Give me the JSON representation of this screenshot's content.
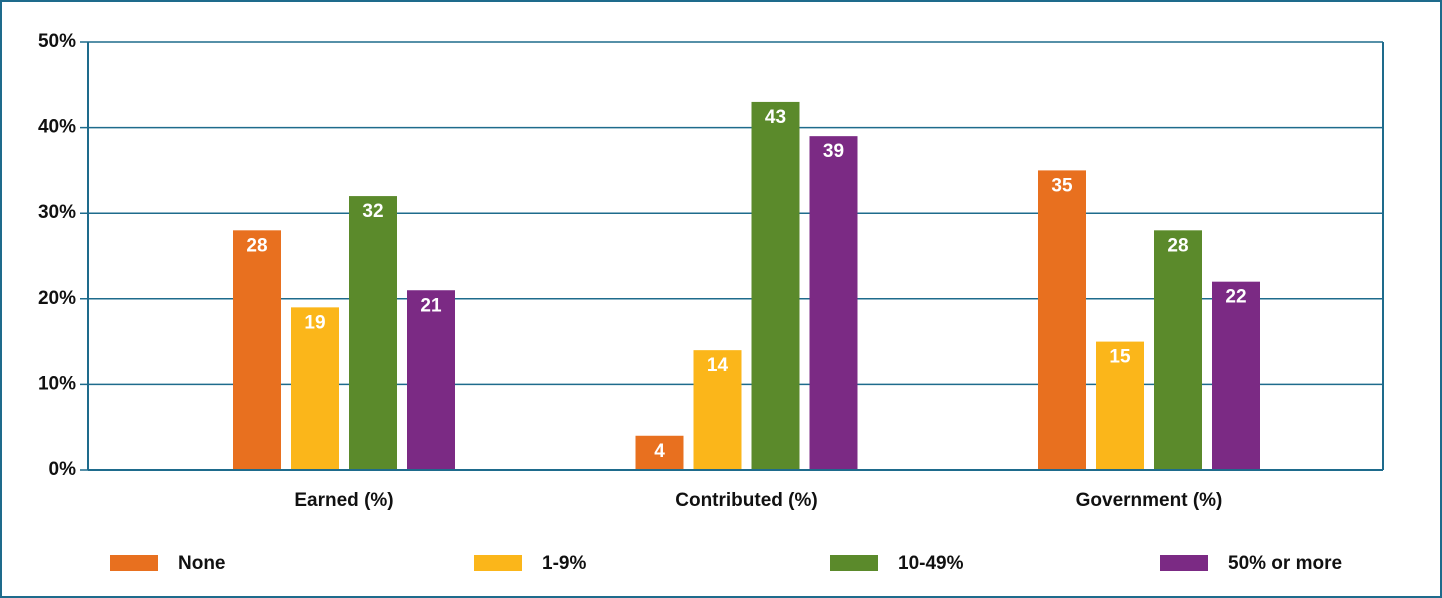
{
  "chart_data": {
    "type": "bar",
    "categories": [
      "Earned (%)",
      "Contributed (%)",
      "Government (%)"
    ],
    "series": [
      {
        "name": "None",
        "color": "#e8701f",
        "values": [
          28,
          4,
          35
        ]
      },
      {
        "name": "1-9%",
        "color": "#fbb61a",
        "values": [
          19,
          14,
          15
        ]
      },
      {
        "name": "10-49%",
        "color": "#5b8a2b",
        "values": [
          32,
          43,
          28
        ]
      },
      {
        "name": "50% or more",
        "color": "#7b2a84",
        "values": [
          21,
          39,
          22
        ]
      }
    ],
    "ylim": [
      0,
      50
    ],
    "yticks": [
      {
        "value": 0,
        "label": "0%"
      },
      {
        "value": 10,
        "label": "10%"
      },
      {
        "value": 20,
        "label": "20%"
      },
      {
        "value": 30,
        "label": "30%"
      },
      {
        "value": 40,
        "label": "40%"
      },
      {
        "value": 50,
        "label": "50%"
      }
    ],
    "grid": true,
    "legend": "bottom"
  }
}
